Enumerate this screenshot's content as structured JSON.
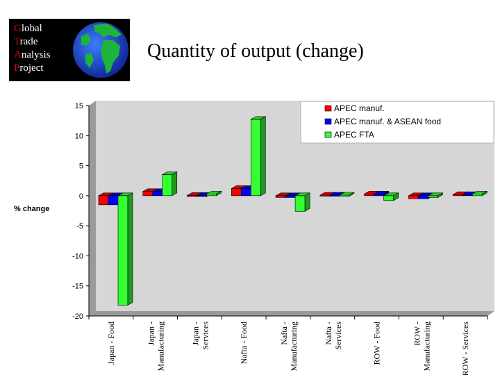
{
  "logo": {
    "lines": [
      {
        "initial": "G",
        "rest": "lobal"
      },
      {
        "initial": "T",
        "rest": "rade"
      },
      {
        "initial": "A",
        "rest": "nalysis"
      },
      {
        "initial": "P",
        "rest": "roject"
      }
    ]
  },
  "slide_title": "Quantity of output (change)",
  "chart_data": {
    "type": "bar",
    "categories": [
      "Japan - Food",
      "Japan - Manufacturing",
      "Japan - Services",
      "Nafta - Food",
      "Nafta - Manufacturing",
      "Nafta - Services",
      "ROW - Food",
      "ROW - Manufacturing",
      "ROW - Services"
    ],
    "series": [
      {
        "name": "APEC manuf.",
        "color": "#ff0000",
        "values": [
          -1.5,
          0.7,
          0.05,
          1.2,
          -0.3,
          0.1,
          0.3,
          -0.5,
          0.2
        ]
      },
      {
        "name": "APEC manuf. & ASEAN food",
        "color": "#0000ff",
        "values": [
          -1.5,
          0.7,
          0.05,
          1.2,
          -0.3,
          0.1,
          0.3,
          -0.5,
          0.2
        ]
      },
      {
        "name": "APEC FTA",
        "color": "#33ff33",
        "values": [
          -18.2,
          3.5,
          0.3,
          12.7,
          -2.6,
          0.1,
          -0.8,
          -0.3,
          0.3
        ]
      }
    ],
    "ylabel": "% change",
    "ylim": [
      -20,
      15
    ],
    "yticks": [
      15,
      10,
      5,
      0,
      -5,
      -10,
      -15,
      -20
    ],
    "ytick_labels": [
      "15",
      "10",
      "5",
      "0",
      "-5",
      "-10",
      "-15",
      "-20"
    ],
    "legend_position": "top-right",
    "grid": false
  }
}
